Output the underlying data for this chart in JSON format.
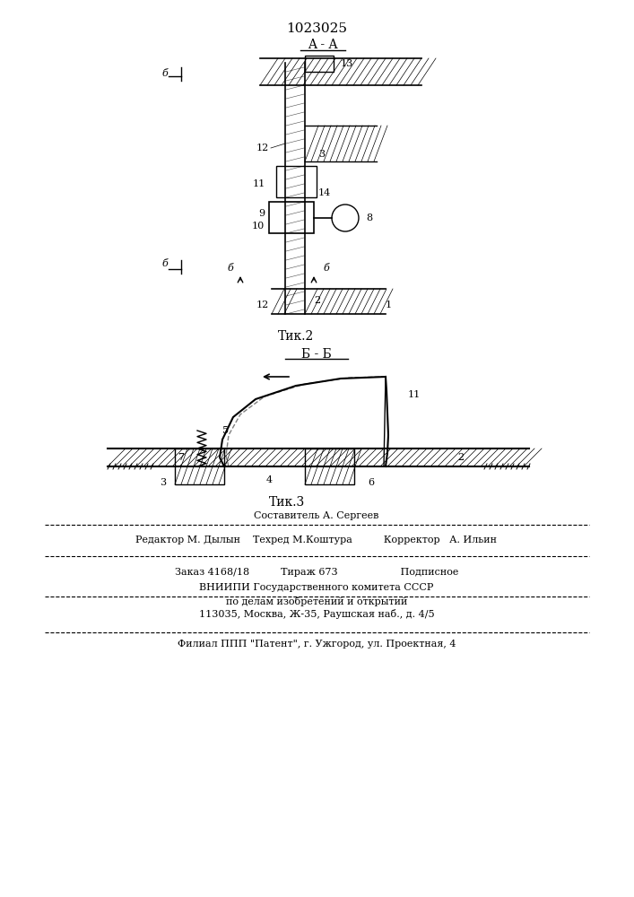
{
  "patent_number": "1023025",
  "fig2_label": "Τик.2",
  "fig3_label": "Τик.3",
  "section_aa": "A - A",
  "section_bb": "Б - Б",
  "bg_color": "#ffffff",
  "line_color": "#000000",
  "hatch_color": "#000000",
  "footer_lines": [
    "Составитель А. Сергеев",
    "Редактор М. Дылын   Техред М.Коштура       Корректор   А. Ильин",
    "Заказ 4168/18     Тираж 673         Подписное",
    "ВНИИПИ Государственного комитета СССР",
    "по делам изобретений и открытий",
    "113035, Москва, Ж-35, Раушская наб., д. 4/5",
    "Филиал ППП \"Патент\", г. Ужгород, ул. Проектная, 4"
  ]
}
